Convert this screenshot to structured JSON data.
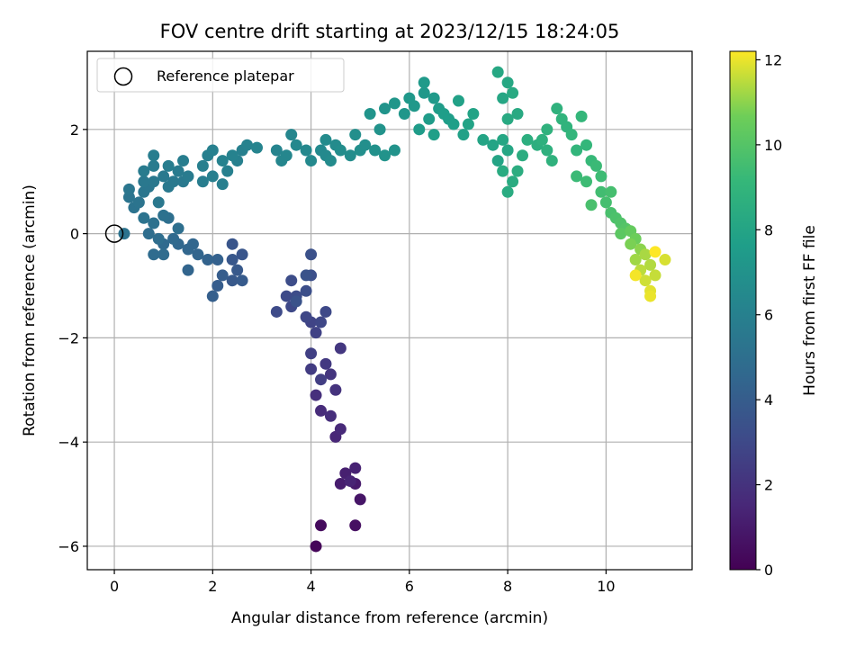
{
  "chart_data": {
    "type": "scatter",
    "title": "FOV centre drift starting at 2023/12/15 18:24:05",
    "xlabel": "Angular distance from reference (arcmin)",
    "ylabel": "Rotation from reference (arcmin)",
    "xlim": [
      -0.55,
      11.75
    ],
    "ylim": [
      -6.45,
      3.5
    ],
    "xticks": [
      0,
      2,
      4,
      6,
      8,
      10
    ],
    "yticks": [
      -6,
      -4,
      -2,
      0,
      2
    ],
    "grid": true,
    "legend": {
      "placement": "upper-left",
      "entries": [
        "Reference platepar"
      ]
    },
    "reference_point": {
      "x": 0,
      "y": 0
    },
    "colorbar": {
      "label": "Hours from first FF file",
      "min": 0,
      "max": 12.2,
      "ticks": [
        0,
        2,
        4,
        6,
        8,
        10,
        12
      ],
      "colormap": "viridis"
    },
    "series": [
      {
        "points": [
          [
            4.1,
            -6.0,
            0.2
          ],
          [
            4.2,
            -5.6,
            0.4
          ],
          [
            4.9,
            -5.6,
            0.6
          ],
          [
            5.0,
            -5.1,
            0.8
          ],
          [
            4.9,
            -4.8,
            1.0
          ],
          [
            4.6,
            -4.8,
            1.1
          ],
          [
            4.7,
            -4.6,
            1.2
          ],
          [
            4.9,
            -4.5,
            1.3
          ],
          [
            4.8,
            -4.75,
            1.4
          ],
          [
            4.5,
            -3.9,
            1.5
          ],
          [
            4.6,
            -3.75,
            1.6
          ],
          [
            4.2,
            -3.4,
            1.7
          ],
          [
            4.4,
            -3.5,
            1.8
          ],
          [
            4.1,
            -3.1,
            1.9
          ],
          [
            4.5,
            -3.0,
            2.0
          ],
          [
            4.4,
            -2.7,
            2.1
          ],
          [
            4.6,
            -2.2,
            2.2
          ],
          [
            4.3,
            -2.5,
            2.3
          ],
          [
            4.0,
            -2.6,
            2.4
          ],
          [
            4.2,
            -2.8,
            2.5
          ],
          [
            4.0,
            -2.3,
            2.6
          ],
          [
            4.1,
            -1.9,
            2.7
          ],
          [
            4.0,
            -1.7,
            2.8
          ],
          [
            3.9,
            -1.6,
            2.9
          ],
          [
            4.2,
            -1.7,
            2.9
          ],
          [
            4.3,
            -1.5,
            3.0
          ],
          [
            3.6,
            -1.4,
            3.0
          ],
          [
            3.3,
            -1.5,
            3.1
          ],
          [
            3.5,
            -1.2,
            3.1
          ],
          [
            3.6,
            -0.9,
            3.2
          ],
          [
            3.7,
            -1.2,
            3.2
          ],
          [
            3.9,
            -1.1,
            3.3
          ],
          [
            4.0,
            -0.8,
            3.3
          ],
          [
            4.0,
            -0.4,
            3.4
          ],
          [
            3.9,
            -0.8,
            3.5
          ],
          [
            3.7,
            -1.3,
            3.5
          ],
          [
            2.6,
            -0.4,
            3.6
          ],
          [
            2.4,
            -0.2,
            3.6
          ],
          [
            2.4,
            -0.5,
            3.7
          ],
          [
            2.5,
            -0.7,
            3.8
          ],
          [
            2.4,
            -0.9,
            3.8
          ],
          [
            2.6,
            -0.9,
            3.9
          ],
          [
            2.2,
            -0.8,
            4.0
          ],
          [
            2.1,
            -1.0,
            4.0
          ],
          [
            2.0,
            -1.2,
            4.1
          ],
          [
            2.1,
            -0.5,
            4.2
          ],
          [
            1.9,
            -0.5,
            4.3
          ],
          [
            1.5,
            -0.7,
            4.4
          ],
          [
            1.7,
            -0.4,
            4.4
          ],
          [
            1.6,
            -0.2,
            4.5
          ],
          [
            1.5,
            -0.3,
            4.5
          ],
          [
            1.3,
            -0.2,
            4.6
          ],
          [
            1.2,
            -0.1,
            4.7
          ],
          [
            1.0,
            -0.2,
            4.7
          ],
          [
            0.8,
            -0.4,
            4.8
          ],
          [
            1.0,
            -0.4,
            4.8
          ],
          [
            0.9,
            -0.1,
            4.9
          ],
          [
            0.7,
            0.0,
            4.9
          ],
          [
            1.3,
            0.1,
            5.0
          ],
          [
            1.1,
            0.3,
            5.0
          ],
          [
            1.0,
            0.35,
            5.1
          ],
          [
            0.8,
            0.2,
            5.1
          ],
          [
            0.6,
            0.3,
            5.2
          ],
          [
            0.4,
            0.5,
            5.2
          ],
          [
            0.2,
            0.0,
            5.2
          ],
          [
            0.5,
            0.6,
            5.3
          ],
          [
            0.3,
            0.7,
            5.3
          ],
          [
            0.6,
            0.8,
            5.4
          ],
          [
            0.7,
            0.9,
            5.4
          ],
          [
            0.3,
            0.85,
            5.4
          ],
          [
            0.9,
            0.6,
            5.5
          ],
          [
            0.8,
            1.0,
            5.5
          ],
          [
            0.6,
            1.0,
            5.5
          ],
          [
            1.1,
            0.9,
            5.6
          ],
          [
            1.2,
            1.0,
            5.6
          ],
          [
            1.0,
            1.1,
            5.6
          ],
          [
            1.4,
            1.0,
            5.6
          ],
          [
            0.8,
            1.3,
            5.7
          ],
          [
            0.6,
            1.2,
            5.7
          ],
          [
            1.3,
            1.2,
            5.7
          ],
          [
            1.5,
            1.1,
            5.7
          ],
          [
            1.4,
            1.4,
            5.8
          ],
          [
            1.1,
            1.3,
            5.8
          ],
          [
            0.8,
            1.5,
            5.8
          ],
          [
            1.8,
            1.0,
            5.8
          ],
          [
            2.0,
            1.1,
            5.9
          ],
          [
            2.2,
            0.95,
            5.9
          ],
          [
            1.8,
            1.3,
            5.9
          ],
          [
            1.9,
            1.5,
            5.9
          ],
          [
            2.0,
            1.6,
            6.0
          ],
          [
            2.3,
            1.2,
            6.0
          ],
          [
            2.5,
            1.4,
            6.0
          ],
          [
            2.6,
            1.6,
            6.0
          ],
          [
            2.7,
            1.7,
            6.1
          ],
          [
            2.4,
            1.5,
            6.1
          ],
          [
            2.2,
            1.4,
            6.1
          ],
          [
            2.9,
            1.65,
            6.2
          ],
          [
            3.3,
            1.6,
            6.2
          ],
          [
            3.5,
            1.5,
            6.3
          ],
          [
            3.4,
            1.4,
            6.3
          ],
          [
            3.6,
            1.9,
            6.3
          ],
          [
            3.7,
            1.7,
            6.4
          ],
          [
            3.9,
            1.6,
            6.4
          ],
          [
            4.0,
            1.4,
            6.5
          ],
          [
            4.2,
            1.6,
            6.5
          ],
          [
            4.3,
            1.5,
            6.5
          ],
          [
            4.4,
            1.4,
            6.6
          ],
          [
            4.5,
            1.7,
            6.6
          ],
          [
            4.3,
            1.8,
            6.6
          ],
          [
            4.6,
            1.6,
            6.7
          ],
          [
            4.8,
            1.5,
            6.7
          ],
          [
            5.0,
            1.6,
            6.8
          ],
          [
            4.9,
            1.9,
            6.8
          ],
          [
            5.1,
            1.7,
            6.8
          ],
          [
            5.3,
            1.6,
            6.9
          ],
          [
            5.5,
            1.5,
            7.0
          ],
          [
            5.7,
            1.6,
            7.0
          ],
          [
            5.4,
            2.0,
            7.0
          ],
          [
            5.2,
            2.3,
            7.1
          ],
          [
            5.5,
            2.4,
            7.1
          ],
          [
            5.7,
            2.5,
            7.2
          ],
          [
            5.9,
            2.3,
            7.2
          ],
          [
            6.0,
            2.6,
            7.3
          ],
          [
            6.1,
            2.45,
            7.3
          ],
          [
            6.3,
            2.7,
            7.3
          ],
          [
            6.3,
            2.9,
            7.4
          ],
          [
            6.5,
            2.6,
            7.4
          ],
          [
            6.6,
            2.4,
            7.5
          ],
          [
            6.4,
            2.2,
            7.5
          ],
          [
            6.2,
            2.0,
            7.5
          ],
          [
            6.7,
            2.3,
            7.6
          ],
          [
            6.8,
            2.2,
            7.6
          ],
          [
            6.5,
            1.9,
            7.7
          ],
          [
            6.9,
            2.1,
            7.7
          ],
          [
            7.0,
            2.55,
            7.8
          ],
          [
            7.1,
            1.9,
            7.8
          ],
          [
            7.2,
            2.1,
            7.9
          ],
          [
            7.3,
            2.3,
            7.9
          ],
          [
            7.5,
            1.8,
            8.0
          ],
          [
            7.7,
            1.7,
            8.0
          ],
          [
            7.8,
            1.4,
            8.0
          ],
          [
            7.9,
            1.8,
            8.1
          ],
          [
            8.0,
            1.6,
            8.1
          ],
          [
            7.9,
            2.6,
            8.1
          ],
          [
            7.8,
            3.1,
            8.2
          ],
          [
            8.0,
            2.9,
            8.2
          ],
          [
            8.1,
            2.7,
            8.3
          ],
          [
            8.2,
            2.3,
            8.3
          ],
          [
            8.0,
            2.2,
            8.3
          ],
          [
            7.9,
            1.2,
            8.4
          ],
          [
            8.1,
            1.0,
            8.4
          ],
          [
            8.0,
            0.8,
            8.4
          ],
          [
            8.2,
            1.2,
            8.5
          ],
          [
            8.3,
            1.5,
            8.5
          ],
          [
            8.4,
            1.8,
            8.6
          ],
          [
            8.6,
            1.7,
            8.6
          ],
          [
            8.7,
            1.8,
            8.7
          ],
          [
            8.8,
            1.6,
            8.7
          ],
          [
            8.9,
            1.4,
            8.8
          ],
          [
            8.8,
            2.0,
            8.8
          ],
          [
            9.0,
            2.4,
            8.8
          ],
          [
            9.1,
            2.2,
            8.9
          ],
          [
            9.2,
            2.05,
            8.9
          ],
          [
            9.3,
            1.9,
            9.0
          ],
          [
            9.4,
            1.6,
            9.0
          ],
          [
            9.5,
            2.25,
            9.1
          ],
          [
            9.6,
            1.7,
            9.1
          ],
          [
            9.7,
            1.4,
            9.2
          ],
          [
            9.4,
            1.1,
            9.3
          ],
          [
            9.8,
            1.3,
            9.3
          ],
          [
            9.9,
            1.1,
            9.4
          ],
          [
            9.6,
            1.0,
            9.4
          ],
          [
            9.9,
            0.8,
            9.5
          ],
          [
            10.0,
            0.6,
            9.6
          ],
          [
            10.1,
            0.8,
            9.6
          ],
          [
            9.7,
            0.55,
            9.7
          ],
          [
            10.1,
            0.4,
            9.7
          ],
          [
            10.2,
            0.3,
            9.8
          ],
          [
            10.3,
            0.2,
            9.9
          ],
          [
            10.4,
            0.1,
            10.0
          ],
          [
            10.3,
            0.0,
            10.2
          ],
          [
            10.5,
            0.05,
            10.4
          ],
          [
            10.6,
            -0.1,
            10.6
          ],
          [
            10.5,
            -0.2,
            10.8
          ],
          [
            10.7,
            -0.3,
            11.0
          ],
          [
            10.6,
            -0.5,
            11.2
          ],
          [
            10.8,
            -0.4,
            11.3
          ],
          [
            10.9,
            -0.6,
            11.4
          ],
          [
            10.7,
            -0.7,
            11.5
          ],
          [
            11.0,
            -0.8,
            11.6
          ],
          [
            10.8,
            -0.9,
            11.7
          ],
          [
            11.2,
            -0.5,
            11.8
          ],
          [
            10.9,
            -1.1,
            11.9
          ],
          [
            10.9,
            -1.2,
            12.0
          ],
          [
            10.6,
            -0.8,
            12.1
          ],
          [
            11.0,
            -0.35,
            12.2
          ]
        ]
      }
    ]
  }
}
